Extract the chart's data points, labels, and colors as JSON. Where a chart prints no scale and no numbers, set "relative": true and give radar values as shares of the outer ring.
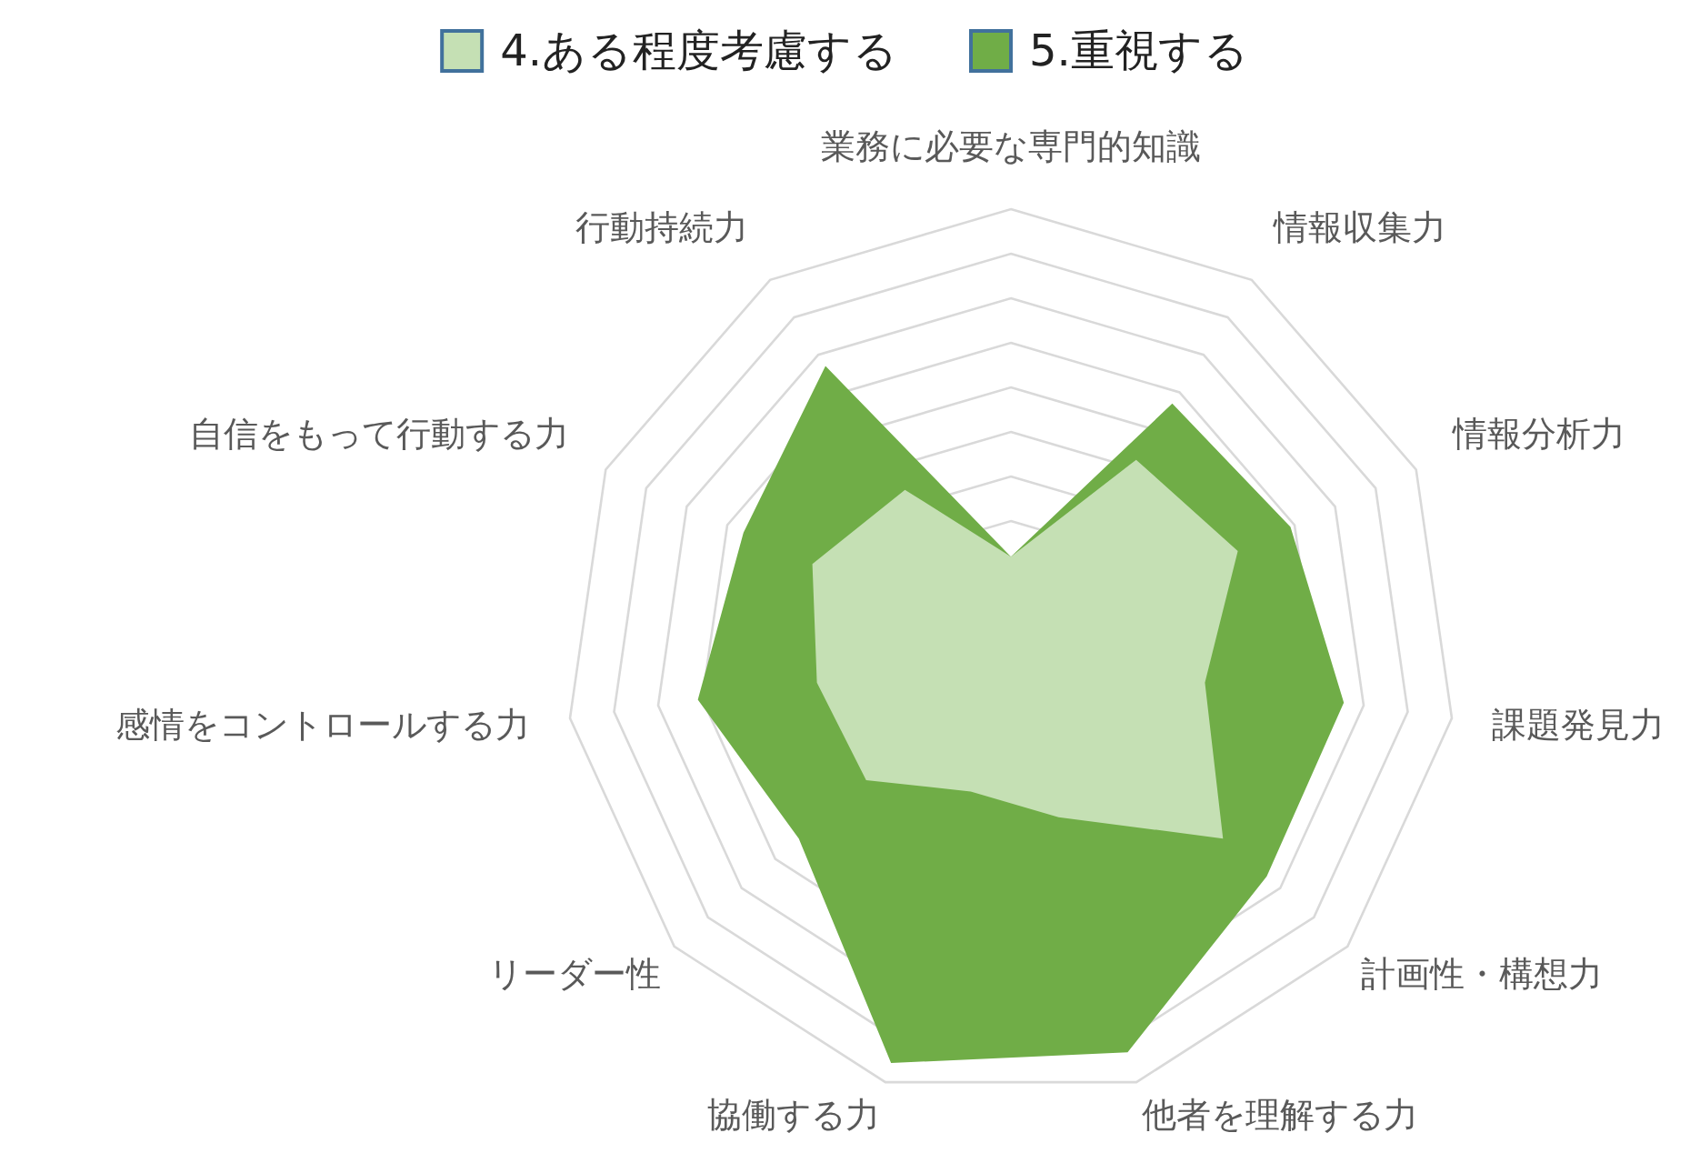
{
  "chart_data": {
    "type": "radar",
    "relative": true,
    "legend": "top",
    "categories": [
      "業務に必要な専門的知識",
      "情報収集力",
      "情報分析力",
      "課題発見力",
      "計画性・構想力",
      "他者を理解する力",
      "協働する力",
      "リーダー性",
      "感情をコントロールする力",
      "自信をもって行動する力",
      "行動持続力"
    ],
    "series": [
      {
        "name": "4.ある程度考慮する",
        "color": "#c5e0b4",
        "values": [
          0.22,
          0.52,
          0.56,
          0.44,
          0.63,
          0.38,
          0.32,
          0.43,
          0.44,
          0.49,
          0.44
        ]
      },
      {
        "name": "5.重視する",
        "color": "#70ad47",
        "values": [
          0.22,
          0.67,
          0.69,
          0.755,
          0.76,
          0.93,
          0.955,
          0.63,
          0.71,
          0.66,
          0.77
        ]
      }
    ]
  }
}
